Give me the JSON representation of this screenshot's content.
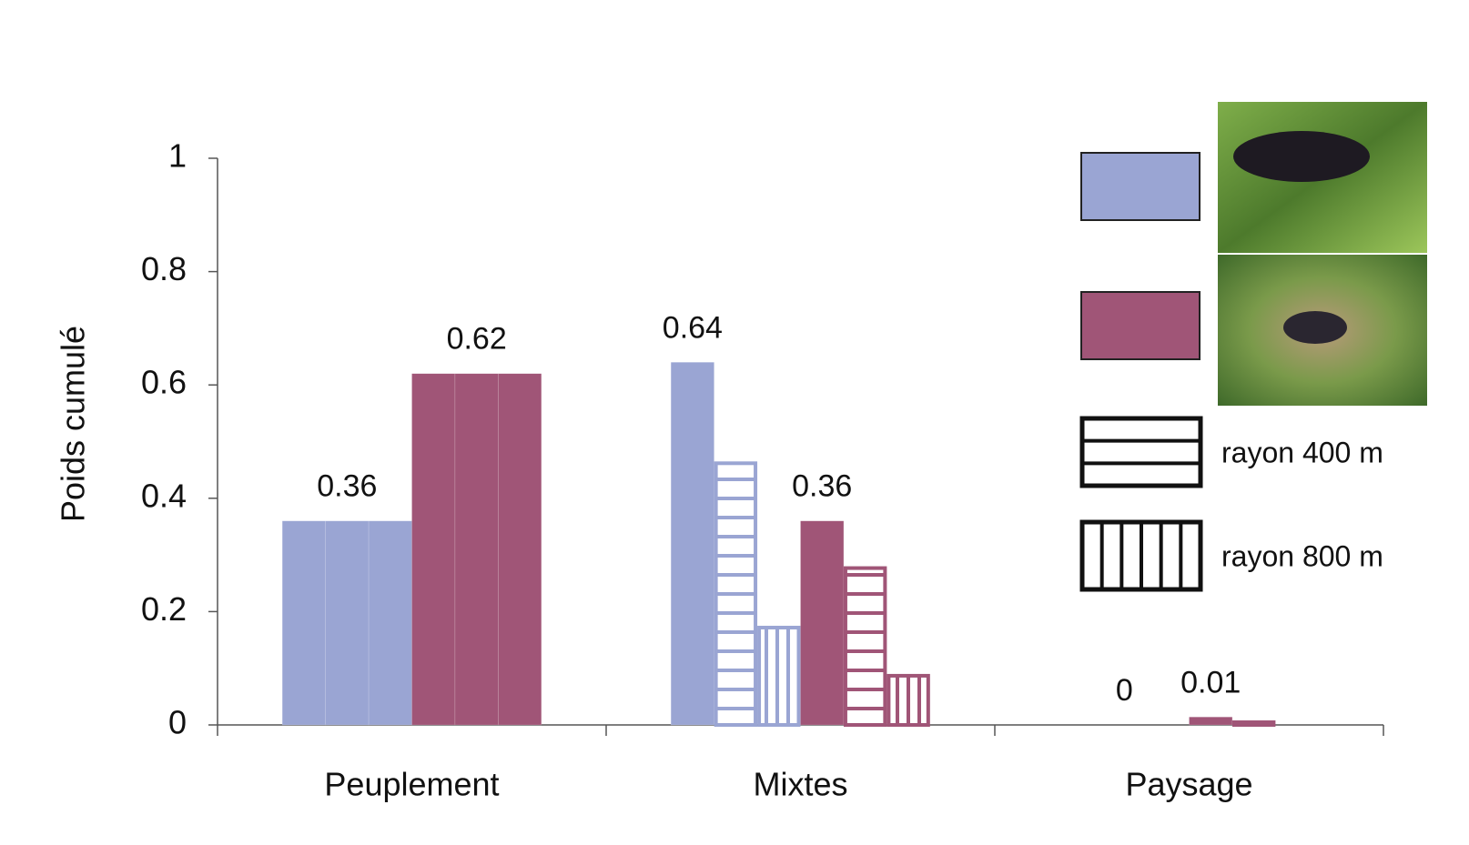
{
  "chart_data": {
    "type": "bar",
    "y_label": "Poids cumulé",
    "categories": [
      "Peuplement",
      "Mixtes",
      "Paysage"
    ],
    "ylim": [
      0,
      1
    ],
    "yticks": [
      0,
      0.2,
      0.4,
      0.6,
      0.8,
      1
    ],
    "series": [
      {
        "color": "#9aa5d3",
        "patterns": [
          "solid",
          "solid",
          "solid"
        ],
        "values": [
          0.36,
          0.64,
          0
        ],
        "value_labels": [
          "0.36",
          "0.64",
          "0"
        ]
      },
      {
        "color": "#9aa5d3",
        "patterns": [
          "solid",
          "horizontal",
          "horizontal"
        ],
        "values": [
          0.36,
          0.465,
          0
        ]
      },
      {
        "color": "#9aa5d3",
        "patterns": [
          "solid",
          "vertical",
          "vertical"
        ],
        "values": [
          0.36,
          0.175,
          0
        ]
      },
      {
        "color": "#a05577",
        "patterns": [
          "solid",
          "solid",
          "solid"
        ],
        "values": [
          0.62,
          0.36,
          0.014
        ],
        "value_labels": [
          "0.62",
          "0.36",
          "0.01"
        ]
      },
      {
        "color": "#a05577",
        "patterns": [
          "solid",
          "horizontal",
          "horizontal"
        ],
        "values": [
          0.62,
          0.28,
          0.008
        ]
      },
      {
        "color": "#a05577",
        "patterns": [
          "solid",
          "vertical",
          "vertical"
        ],
        "values": [
          0.62,
          0.09,
          0
        ]
      }
    ],
    "pattern_legend": [
      {
        "label": "rayon 400 m",
        "pattern": "horizontal"
      },
      {
        "label": "rayon 800 m",
        "pattern": "vertical"
      }
    ]
  }
}
